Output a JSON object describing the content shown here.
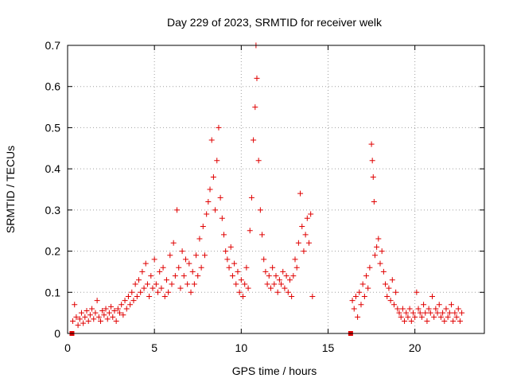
{
  "chart_data": {
    "type": "scatter",
    "title": "Day 229 of 2023, SRMTID for receiver welk",
    "xlabel": "GPS time / hours",
    "ylabel": "SRMTID / TECUs",
    "xlim": [
      0,
      24
    ],
    "ylim": [
      0,
      0.7
    ],
    "x_ticks": [
      0,
      5,
      10,
      15,
      20
    ],
    "y_ticks": [
      0,
      0.1,
      0.2,
      0.3,
      0.4,
      0.5,
      0.6,
      0.7
    ],
    "x_tick_labels": [
      "0",
      "5",
      "10",
      "15",
      "20"
    ],
    "y_tick_labels": [
      "0",
      "0.1",
      "0.2",
      "0.3",
      "0.4",
      "0.5",
      "0.6",
      "0.7"
    ],
    "grid": true,
    "marker": "plus",
    "marker_color": "#e00000",
    "outliers_at_zero": [
      0.25,
      16.3
    ],
    "series": [
      {
        "name": "SRMTID",
        "points": [
          [
            0.3,
            0.03
          ],
          [
            0.4,
            0.07
          ],
          [
            0.5,
            0.04
          ],
          [
            0.6,
            0.02
          ],
          [
            0.7,
            0.035
          ],
          [
            0.8,
            0.05
          ],
          [
            0.9,
            0.025
          ],
          [
            1.0,
            0.04
          ],
          [
            1.1,
            0.055
          ],
          [
            1.2,
            0.03
          ],
          [
            1.3,
            0.045
          ],
          [
            1.4,
            0.06
          ],
          [
            1.5,
            0.035
          ],
          [
            1.6,
            0.05
          ],
          [
            1.7,
            0.08
          ],
          [
            1.8,
            0.04
          ],
          [
            1.9,
            0.03
          ],
          [
            2.0,
            0.055
          ],
          [
            2.1,
            0.045
          ],
          [
            2.2,
            0.06
          ],
          [
            2.3,
            0.035
          ],
          [
            2.4,
            0.05
          ],
          [
            2.5,
            0.065
          ],
          [
            2.6,
            0.04
          ],
          [
            2.7,
            0.055
          ],
          [
            2.8,
            0.03
          ],
          [
            2.9,
            0.06
          ],
          [
            3.0,
            0.05
          ],
          [
            3.1,
            0.07
          ],
          [
            3.2,
            0.045
          ],
          [
            3.3,
            0.08
          ],
          [
            3.4,
            0.06
          ],
          [
            3.5,
            0.09
          ],
          [
            3.6,
            0.07
          ],
          [
            3.7,
            0.1
          ],
          [
            3.8,
            0.08
          ],
          [
            3.9,
            0.12
          ],
          [
            4.0,
            0.09
          ],
          [
            4.1,
            0.13
          ],
          [
            4.2,
            0.1
          ],
          [
            4.3,
            0.15
          ],
          [
            4.4,
            0.11
          ],
          [
            4.5,
            0.17
          ],
          [
            4.6,
            0.12
          ],
          [
            4.7,
            0.09
          ],
          [
            4.8,
            0.14
          ],
          [
            4.9,
            0.11
          ],
          [
            5.0,
            0.18
          ],
          [
            5.1,
            0.12
          ],
          [
            5.2,
            0.1
          ],
          [
            5.3,
            0.15
          ],
          [
            5.4,
            0.11
          ],
          [
            5.5,
            0.16
          ],
          [
            5.6,
            0.09
          ],
          [
            5.7,
            0.13
          ],
          [
            5.8,
            0.1
          ],
          [
            5.9,
            0.19
          ],
          [
            6.0,
            0.12
          ],
          [
            6.1,
            0.22
          ],
          [
            6.2,
            0.14
          ],
          [
            6.3,
            0.3
          ],
          [
            6.4,
            0.16
          ],
          [
            6.5,
            0.11
          ],
          [
            6.6,
            0.2
          ],
          [
            6.7,
            0.14
          ],
          [
            6.8,
            0.18
          ],
          [
            6.9,
            0.12
          ],
          [
            7.0,
            0.17
          ],
          [
            7.1,
            0.1
          ],
          [
            7.2,
            0.15
          ],
          [
            7.3,
            0.12
          ],
          [
            7.4,
            0.19
          ],
          [
            7.5,
            0.14
          ],
          [
            7.6,
            0.23
          ],
          [
            7.7,
            0.16
          ],
          [
            7.8,
            0.26
          ],
          [
            7.9,
            0.19
          ],
          [
            8.0,
            0.29
          ],
          [
            8.1,
            0.32
          ],
          [
            8.2,
            0.35
          ],
          [
            8.3,
            0.47
          ],
          [
            8.4,
            0.38
          ],
          [
            8.5,
            0.3
          ],
          [
            8.6,
            0.42
          ],
          [
            8.7,
            0.5
          ],
          [
            8.8,
            0.33
          ],
          [
            8.9,
            0.28
          ],
          [
            9.0,
            0.24
          ],
          [
            9.1,
            0.2
          ],
          [
            9.2,
            0.18
          ],
          [
            9.3,
            0.16
          ],
          [
            9.4,
            0.21
          ],
          [
            9.5,
            0.14
          ],
          [
            9.6,
            0.17
          ],
          [
            9.7,
            0.12
          ],
          [
            9.8,
            0.15
          ],
          [
            9.9,
            0.1
          ],
          [
            10.0,
            0.13
          ],
          [
            10.1,
            0.09
          ],
          [
            10.2,
            0.12
          ],
          [
            10.3,
            0.16
          ],
          [
            10.4,
            0.11
          ],
          [
            10.5,
            0.25
          ],
          [
            10.6,
            0.33
          ],
          [
            10.7,
            0.47
          ],
          [
            10.8,
            0.55
          ],
          [
            10.85,
            0.7
          ],
          [
            10.9,
            0.62
          ],
          [
            11.0,
            0.42
          ],
          [
            11.1,
            0.3
          ],
          [
            11.2,
            0.24
          ],
          [
            11.3,
            0.18
          ],
          [
            11.4,
            0.15
          ],
          [
            11.5,
            0.12
          ],
          [
            11.6,
            0.14
          ],
          [
            11.7,
            0.11
          ],
          [
            11.8,
            0.16
          ],
          [
            11.9,
            0.12
          ],
          [
            12.0,
            0.14
          ],
          [
            12.1,
            0.1
          ],
          [
            12.2,
            0.13
          ],
          [
            12.3,
            0.12
          ],
          [
            12.4,
            0.15
          ],
          [
            12.5,
            0.11
          ],
          [
            12.6,
            0.14
          ],
          [
            12.7,
            0.1
          ],
          [
            12.8,
            0.13
          ],
          [
            12.9,
            0.09
          ],
          [
            13.0,
            0.14
          ],
          [
            13.1,
            0.18
          ],
          [
            13.2,
            0.16
          ],
          [
            13.3,
            0.22
          ],
          [
            13.4,
            0.34
          ],
          [
            13.5,
            0.26
          ],
          [
            13.6,
            0.2
          ],
          [
            13.7,
            0.24
          ],
          [
            13.8,
            0.28
          ],
          [
            13.9,
            0.22
          ],
          [
            14.0,
            0.29
          ],
          [
            14.1,
            0.09
          ],
          [
            16.4,
            0.08
          ],
          [
            16.5,
            0.06
          ],
          [
            16.6,
            0.09
          ],
          [
            16.7,
            0.04
          ],
          [
            16.8,
            0.1
          ],
          [
            16.9,
            0.07
          ],
          [
            17.0,
            0.12
          ],
          [
            17.1,
            0.09
          ],
          [
            17.2,
            0.14
          ],
          [
            17.3,
            0.11
          ],
          [
            17.4,
            0.16
          ],
          [
            17.5,
            0.46
          ],
          [
            17.55,
            0.42
          ],
          [
            17.6,
            0.38
          ],
          [
            17.65,
            0.32
          ],
          [
            17.7,
            0.19
          ],
          [
            17.8,
            0.21
          ],
          [
            17.9,
            0.23
          ],
          [
            18.0,
            0.17
          ],
          [
            18.1,
            0.2
          ],
          [
            18.2,
            0.15
          ],
          [
            18.3,
            0.12
          ],
          [
            18.4,
            0.09
          ],
          [
            18.5,
            0.11
          ],
          [
            18.6,
            0.08
          ],
          [
            18.7,
            0.13
          ],
          [
            18.8,
            0.07
          ],
          [
            18.9,
            0.1
          ],
          [
            19.0,
            0.06
          ],
          [
            19.1,
            0.05
          ],
          [
            19.2,
            0.04
          ],
          [
            19.3,
            0.06
          ],
          [
            19.4,
            0.03
          ],
          [
            19.5,
            0.05
          ],
          [
            19.6,
            0.04
          ],
          [
            19.7,
            0.06
          ],
          [
            19.8,
            0.03
          ],
          [
            19.9,
            0.05
          ],
          [
            20.0,
            0.04
          ],
          [
            20.1,
            0.1
          ],
          [
            20.2,
            0.06
          ],
          [
            20.3,
            0.05
          ],
          [
            20.4,
            0.04
          ],
          [
            20.5,
            0.07
          ],
          [
            20.6,
            0.05
          ],
          [
            20.7,
            0.03
          ],
          [
            20.8,
            0.06
          ],
          [
            20.9,
            0.05
          ],
          [
            21.0,
            0.09
          ],
          [
            21.1,
            0.04
          ],
          [
            21.2,
            0.06
          ],
          [
            21.3,
            0.05
          ],
          [
            21.4,
            0.07
          ],
          [
            21.5,
            0.04
          ],
          [
            21.6,
            0.05
          ],
          [
            21.7,
            0.03
          ],
          [
            21.8,
            0.06
          ],
          [
            21.9,
            0.04
          ],
          [
            22.0,
            0.05
          ],
          [
            22.1,
            0.07
          ],
          [
            22.2,
            0.03
          ],
          [
            22.3,
            0.05
          ],
          [
            22.4,
            0.04
          ],
          [
            22.5,
            0.06
          ],
          [
            22.6,
            0.03
          ],
          [
            22.7,
            0.05
          ]
        ]
      }
    ]
  }
}
